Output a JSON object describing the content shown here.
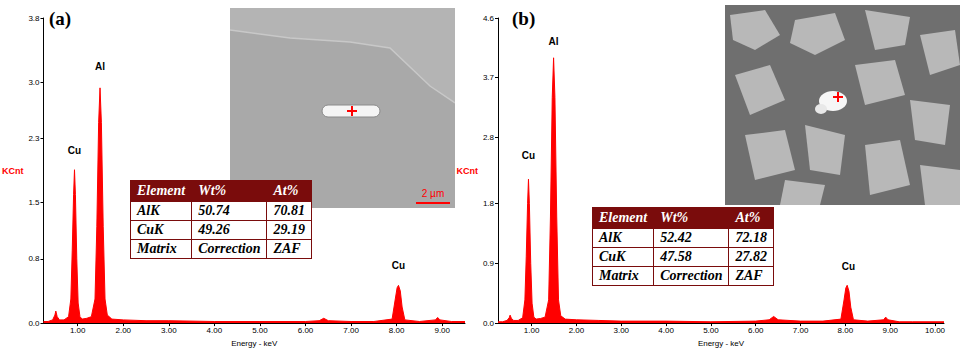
{
  "chart_data": [
    {
      "type": "line",
      "title": "(a)",
      "x_label": "Energy - keV",
      "y_label": "KCnt",
      "x": [
        0.25,
        0.35,
        0.45,
        0.5,
        0.52,
        0.55,
        0.6,
        0.7,
        0.8,
        0.85,
        0.88,
        0.91,
        0.93,
        0.95,
        0.98,
        1.01,
        1.05,
        1.1,
        1.2,
        1.3,
        1.38,
        1.42,
        1.46,
        1.49,
        1.52,
        1.56,
        1.6,
        1.65,
        1.75,
        2.0,
        2.5,
        3.0,
        4.0,
        5.0,
        6.0,
        6.3,
        6.4,
        6.5,
        7.0,
        7.5,
        7.9,
        7.97,
        8.01,
        8.04,
        8.08,
        8.12,
        8.18,
        8.5,
        8.85,
        8.9,
        8.95,
        9.2,
        9.5
      ],
      "values": [
        0.02,
        0.02,
        0.04,
        0.1,
        0.15,
        0.08,
        0.04,
        0.04,
        0.08,
        0.3,
        0.9,
        1.6,
        1.91,
        1.6,
        0.8,
        0.25,
        0.08,
        0.05,
        0.06,
        0.08,
        0.3,
        1.2,
        2.5,
        2.93,
        2.5,
        1.2,
        0.3,
        0.1,
        0.05,
        0.04,
        0.03,
        0.03,
        0.02,
        0.02,
        0.02,
        0.03,
        0.06,
        0.03,
        0.02,
        0.02,
        0.05,
        0.3,
        0.44,
        0.47,
        0.4,
        0.2,
        0.04,
        0.02,
        0.04,
        0.07,
        0.04,
        0.02,
        0.02
      ],
      "color": "#ff0000",
      "xlim": [
        0.25,
        9.5
      ],
      "xticks": [
        {
          "value": 1,
          "label": "1.00"
        },
        {
          "value": 2,
          "label": "2.00"
        },
        {
          "value": 3,
          "label": "3.00"
        },
        {
          "value": 4,
          "label": "4.00"
        },
        {
          "value": 5,
          "label": "5.00"
        },
        {
          "value": 6,
          "label": "6.00"
        },
        {
          "value": 7,
          "label": "7.00"
        },
        {
          "value": 8,
          "label": "8.00"
        },
        {
          "value": 9,
          "label": "9.00"
        }
      ],
      "ylim": [
        0,
        3.8
      ],
      "yticks": [
        {
          "value": 0,
          "label": "0.0"
        },
        0.8,
        1.5,
        2.3,
        {
          "value": 3,
          "label": "3.0"
        },
        3.8
      ],
      "grid": false,
      "annotations": [
        {
          "text": "Cu",
          "x": 0.93,
          "y": 2.15
        },
        {
          "text": "Al",
          "x": 1.49,
          "y": 3.2
        },
        {
          "text": "Cu",
          "x": 8.04,
          "y": 0.72
        }
      ],
      "table": {
        "header": [
          "Element",
          "Wt%",
          "At%"
        ],
        "rows": [
          [
            "AlK",
            "50.74",
            "70.81"
          ],
          [
            "CuK",
            "49.26",
            "29.19"
          ],
          [
            "Matrix",
            "Correction",
            "ZAF"
          ]
        ]
      },
      "inset_scale_label": "2 µm"
    },
    {
      "type": "line",
      "title": "(b)",
      "x_label": "Energy - keV",
      "y_label": "KCnt",
      "x": [
        0.25,
        0.35,
        0.45,
        0.5,
        0.52,
        0.55,
        0.6,
        0.7,
        0.8,
        0.85,
        0.88,
        0.91,
        0.93,
        0.95,
        0.98,
        1.01,
        1.05,
        1.1,
        1.2,
        1.3,
        1.38,
        1.42,
        1.46,
        1.49,
        1.52,
        1.56,
        1.6,
        1.65,
        1.75,
        2.0,
        2.5,
        3.0,
        4.0,
        5.0,
        6.0,
        6.3,
        6.4,
        6.5,
        7.0,
        7.5,
        7.9,
        7.97,
        8.01,
        8.04,
        8.08,
        8.12,
        8.18,
        8.5,
        8.85,
        8.9,
        8.95,
        9.2,
        9.5,
        10.0,
        10.2
      ],
      "values": [
        0.02,
        0.02,
        0.04,
        0.08,
        0.12,
        0.07,
        0.04,
        0.04,
        0.08,
        0.35,
        1.0,
        1.8,
        2.17,
        1.8,
        0.9,
        0.3,
        0.09,
        0.06,
        0.07,
        0.09,
        0.35,
        1.6,
        3.4,
        4.0,
        3.4,
        1.6,
        0.35,
        0.11,
        0.06,
        0.05,
        0.04,
        0.03,
        0.03,
        0.02,
        0.03,
        0.05,
        0.1,
        0.05,
        0.03,
        0.03,
        0.06,
        0.35,
        0.53,
        0.57,
        0.48,
        0.24,
        0.05,
        0.03,
        0.05,
        0.09,
        0.05,
        0.02,
        0.02,
        0.02,
        0.02
      ],
      "color": "#ff0000",
      "xlim": [
        0.25,
        10.2
      ],
      "xticks": [
        {
          "value": 1,
          "label": "1.00"
        },
        {
          "value": 2,
          "label": "2.00"
        },
        {
          "value": 3,
          "label": "3.00"
        },
        {
          "value": 4,
          "label": "4.00"
        },
        {
          "value": 5,
          "label": "5.00"
        },
        {
          "value": 6,
          "label": "6.00"
        },
        {
          "value": 7,
          "label": "7.00"
        },
        {
          "value": 8,
          "label": "8.00"
        },
        {
          "value": 9,
          "label": "9.00"
        },
        {
          "value": 10,
          "label": "10.00"
        }
      ],
      "ylim": [
        0,
        4.6
      ],
      "yticks": [
        {
          "value": 0,
          "label": "0.0"
        },
        0.9,
        1.8,
        2.8,
        3.7,
        4.6
      ],
      "grid": false,
      "annotations": [
        {
          "text": "Cu",
          "x": 0.93,
          "y": 2.53
        },
        {
          "text": "Al",
          "x": 1.49,
          "y": 4.25
        },
        {
          "text": "Cu",
          "x": 8.07,
          "y": 0.85
        }
      ],
      "table": {
        "header": [
          "Element",
          "Wt%",
          "At%"
        ],
        "rows": [
          [
            "AlK",
            "52.42",
            "72.18"
          ],
          [
            "CuK",
            "47.58",
            "27.82"
          ],
          [
            "Matrix",
            "Correction",
            "ZAF"
          ]
        ]
      }
    }
  ]
}
